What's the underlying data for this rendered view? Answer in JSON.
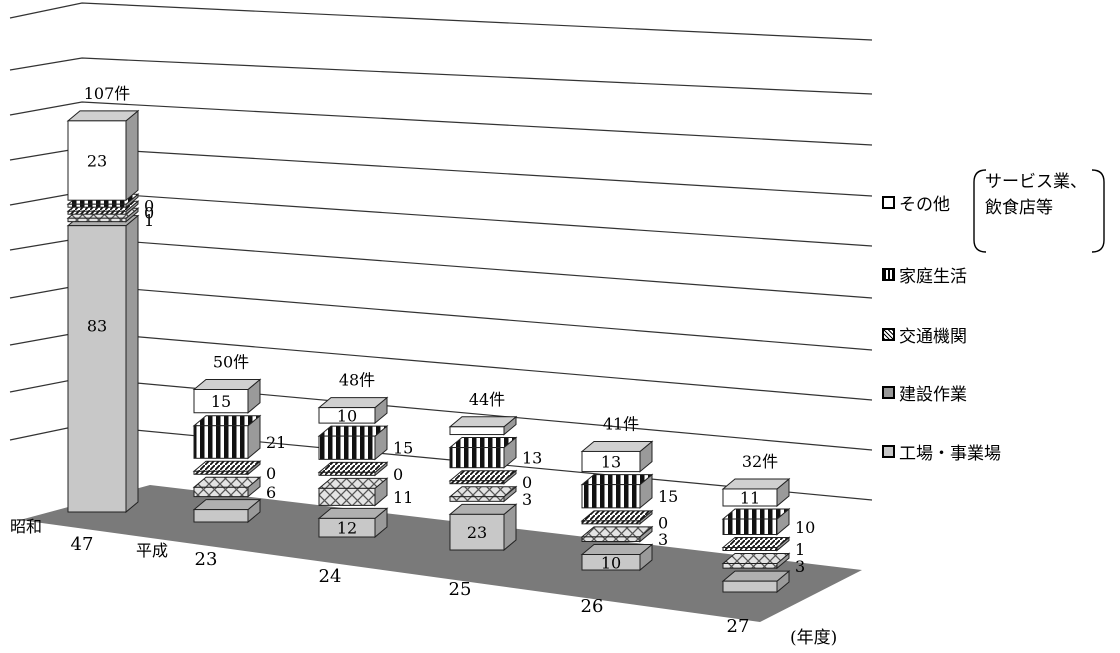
{
  "chart_data": {
    "type": "bar",
    "stacked": true,
    "three_d": true,
    "categories": [
      "47",
      "23",
      "24",
      "25",
      "26",
      "27"
    ],
    "era_labels": [
      "昭和",
      "平成"
    ],
    "x_unit_label": "(年度)",
    "totals": [
      "107件",
      "50件",
      "48件",
      "44件",
      "41件",
      "32件"
    ],
    "series": [
      {
        "name": "工場・事業場",
        "values": [
          83,
          8,
          12,
          23,
          10,
          7
        ],
        "pattern": "gray"
      },
      {
        "name": "建設作業",
        "values": [
          1,
          6,
          11,
          3,
          3,
          3
        ],
        "pattern": "crosshatch"
      },
      {
        "name": "交通機関",
        "values": [
          0,
          0,
          0,
          0,
          0,
          1
        ],
        "pattern": "diagonal"
      },
      {
        "name": "家庭生活",
        "values": [
          0,
          21,
          15,
          13,
          15,
          10
        ],
        "pattern": "vertical-stripes"
      },
      {
        "name": "その他",
        "values": [
          23,
          15,
          10,
          5,
          13,
          11
        ],
        "pattern": "white"
      }
    ],
    "legend_note": [
      "サービス業、",
      "飲食店等"
    ],
    "legend_position": "right",
    "grid": true
  }
}
